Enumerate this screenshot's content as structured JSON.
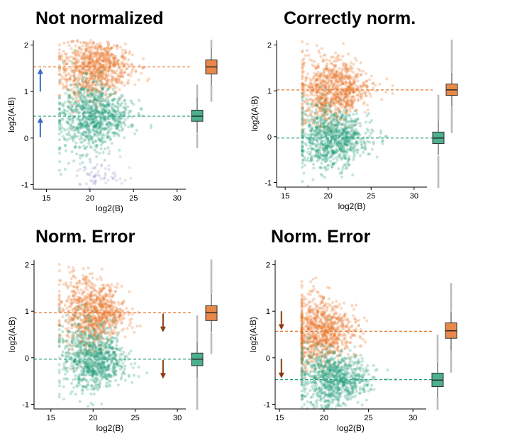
{
  "colors": {
    "orange": "#E8762C",
    "orange_box": "#E8894A",
    "green": "#2CA37E",
    "green_box": "#4DB08C",
    "purple": "#9E9AC8",
    "blue_arrow": "#3A6BC8",
    "brown_arrow": "#8B3A0E",
    "axis": "#000000",
    "outlier": "#999999"
  },
  "chart_data": [
    {
      "type": "scatter",
      "title": "Not normalized",
      "xlabel": "log2(B)",
      "ylabel": "log2(A:B)",
      "xlim": [
        13.5,
        31
      ],
      "ylim": [
        -1.1,
        2.1
      ],
      "xticks": [
        15,
        20,
        25,
        30
      ],
      "yticks": [
        -1,
        0,
        1,
        2
      ],
      "xtick_labels": [
        "15",
        "20",
        "25",
        "30"
      ],
      "ytick_labels": [
        "-1",
        "0",
        "1",
        "2"
      ],
      "series": [
        {
          "color": "orange",
          "median": 1.53,
          "x_center": 20.5,
          "x_spread": 2.6
        },
        {
          "color": "green",
          "median": 0.47,
          "x_center": 20.5,
          "x_spread": 2.6
        },
        {
          "color": "purple",
          "median": -0.8,
          "x_center": 21,
          "x_spread": 1.5,
          "sparse": true
        }
      ],
      "boxplots": [
        {
          "color": "green",
          "q1": 0.36,
          "median": 0.47,
          "q3": 0.6,
          "min": -0.2,
          "max": 1.15
        },
        {
          "color": "orange",
          "q1": 1.38,
          "median": 1.53,
          "q3": 1.68,
          "min": 0.8,
          "max": 2.1
        }
      ],
      "arrows": [
        {
          "color": "blue",
          "direction": "up",
          "x": 14.3,
          "from": 0.02,
          "to": 0.45
        },
        {
          "color": "blue",
          "direction": "up",
          "x": 14.3,
          "from": 1.0,
          "to": 1.5
        }
      ]
    },
    {
      "type": "scatter",
      "title": "Correctly norm.",
      "xlabel": "log2(B)",
      "ylabel": "log2(A:B)",
      "xlim": [
        14,
        31.5
      ],
      "ylim": [
        -1.1,
        2.1
      ],
      "xticks": [
        15,
        20,
        25,
        30
      ],
      "yticks": [
        -1,
        0,
        1,
        2
      ],
      "xtick_labels": [
        "15",
        "20",
        "25",
        "30"
      ],
      "ytick_labels": [
        "-1",
        "0",
        "1",
        "2"
      ],
      "series": [
        {
          "color": "orange",
          "median": 1.02,
          "x_center": 20.5,
          "x_spread": 2.6
        },
        {
          "color": "green",
          "median": -0.03,
          "x_center": 20.5,
          "x_spread": 2.6
        }
      ],
      "boxplots": [
        {
          "color": "green",
          "q1": -0.15,
          "median": -0.03,
          "q3": 0.1,
          "min": -1.1,
          "max": 0.9
        },
        {
          "color": "orange",
          "q1": 0.9,
          "median": 1.02,
          "q3": 1.15,
          "min": 0.1,
          "max": 2.1
        }
      ],
      "arrows": []
    },
    {
      "type": "scatter",
      "title": "Norm. Error",
      "xlabel": "log2(B)",
      "ylabel": "log2(A:B)",
      "xlim": [
        13,
        31
      ],
      "ylim": [
        -1.1,
        2.1
      ],
      "xticks": [
        15,
        20,
        25,
        30
      ],
      "yticks": [
        -1,
        0,
        1,
        2
      ],
      "xtick_labels": [
        "15",
        "20",
        "25",
        "30"
      ],
      "ytick_labels": [
        "-1",
        "0",
        "1",
        "2"
      ],
      "series": [
        {
          "color": "orange",
          "median": 0.97,
          "x_center": 20,
          "x_spread": 2.4,
          "tail": true
        },
        {
          "color": "green",
          "median": -0.03,
          "x_center": 20,
          "x_spread": 2.4,
          "tail": true
        }
      ],
      "boxplots": [
        {
          "color": "green",
          "q1": -0.17,
          "median": -0.03,
          "q3": 0.1,
          "min": -1.1,
          "max": 0.9
        },
        {
          "color": "orange",
          "q1": 0.8,
          "median": 0.97,
          "q3": 1.12,
          "min": 0.1,
          "max": 2.1
        }
      ],
      "arrows": [
        {
          "color": "brown",
          "direction": "down",
          "x": 28.3,
          "from": 0.95,
          "to": 0.55
        },
        {
          "color": "brown",
          "direction": "down",
          "x": 28.3,
          "from": -0.05,
          "to": -0.45
        }
      ]
    },
    {
      "type": "scatter",
      "title": "Norm. Error",
      "xlabel": "log2(B)",
      "ylabel": "log2(A:B)",
      "xlim": [
        14.5,
        31.5
      ],
      "ylim": [
        -1.1,
        2.1
      ],
      "xticks": [
        15,
        20,
        25,
        30
      ],
      "yticks": [
        -1,
        0,
        1,
        2
      ],
      "xtick_labels": [
        "15",
        "20",
        "25",
        "30"
      ],
      "ytick_labels": [
        "-1",
        "0",
        "1",
        "2"
      ],
      "series": [
        {
          "color": "orange",
          "median": 0.57,
          "x_center": 19.5,
          "x_spread": 2.5
        },
        {
          "color": "green",
          "median": -0.47,
          "x_center": 21,
          "x_spread": 2.5
        }
      ],
      "boxplots": [
        {
          "color": "green",
          "q1": -0.62,
          "median": -0.48,
          "q3": -0.33,
          "min": -1.1,
          "max": 0.5
        },
        {
          "color": "orange",
          "q1": 0.42,
          "median": 0.58,
          "q3": 0.75,
          "min": -0.3,
          "max": 1.6
        }
      ],
      "arrows": [
        {
          "color": "brown",
          "direction": "down",
          "x": 15.2,
          "from": 1.0,
          "to": 0.6
        },
        {
          "color": "brown",
          "direction": "down",
          "x": 15.2,
          "from": -0.02,
          "to": -0.44
        }
      ]
    }
  ]
}
